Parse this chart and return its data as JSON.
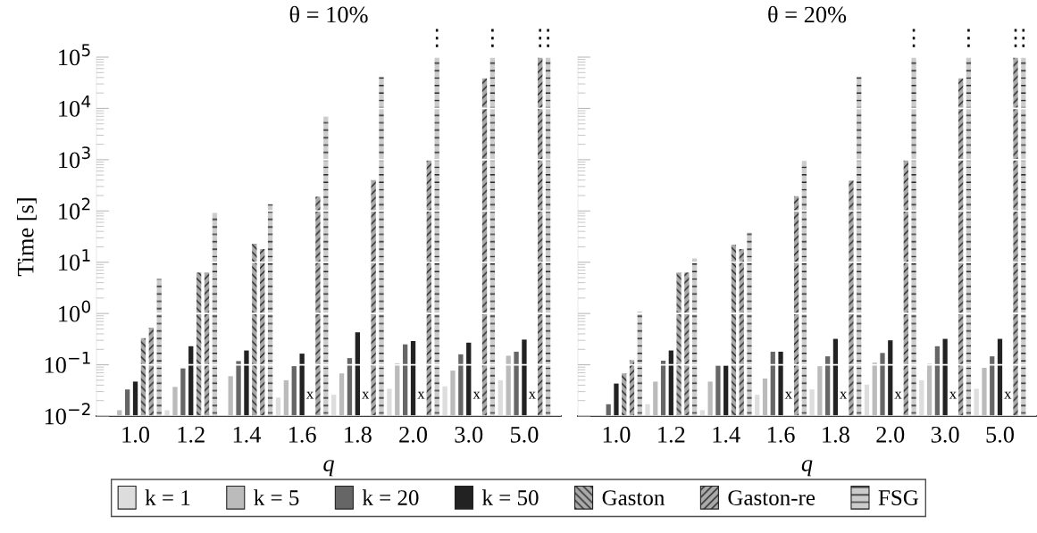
{
  "chart_data": [
    {
      "type": "bar",
      "title": "θ = 10%",
      "xlabel": "q",
      "ylabel": "Time [s]",
      "log": "y",
      "grid": "y",
      "legend": "bottom",
      "categories": [
        "1.0",
        "1.2",
        "1.4",
        "1.6",
        "1.8",
        "2.0",
        "3.0",
        "5.0"
      ],
      "ylim": [
        0.01,
        100000
      ],
      "yticks": [
        {
          "value": 0.01,
          "label": "10$^{−2}$"
        },
        {
          "value": 0.1,
          "label": "10$^{−1}$"
        },
        {
          "value": 1,
          "label": "10$^{0}$"
        },
        {
          "value": 10,
          "label": "10$^{1}$"
        },
        {
          "value": 100,
          "label": "10$^{2}$"
        },
        {
          "value": 1000,
          "label": "10$^{3}$"
        },
        {
          "value": 10000,
          "label": "10$^{4}$"
        },
        {
          "value": 100000,
          "label": "10$^{5}$"
        }
      ],
      "series": [
        {
          "name": "k = 1",
          "color": "#dddddd",
          "values": [
            null,
            0.013,
            null,
            0.023,
            0.026,
            0.034,
            0.038,
            0.05
          ]
        },
        {
          "name": "k = 5",
          "color": "#bbbbbb",
          "values": [
            0.013,
            0.037,
            0.06,
            0.05,
            0.068,
            0.107,
            0.077,
            0.15
          ]
        },
        {
          "name": "k = 20",
          "color": "#666666",
          "values": [
            0.033,
            0.085,
            0.118,
            0.094,
            0.135,
            0.25,
            0.16,
            0.18
          ]
        },
        {
          "name": "k = 50",
          "color": "#222222",
          "values": [
            0.047,
            0.23,
            0.19,
            0.165,
            0.43,
            0.29,
            0.27,
            0.31
          ]
        },
        {
          "name": "Gaston",
          "color": "#aaaaaa",
          "values": [
            0.33,
            6.3,
            23,
            null,
            null,
            null,
            null,
            null
          ],
          "value_labels": [
            null,
            null,
            null,
            "x",
            "x",
            "x",
            "x",
            "x"
          ]
        },
        {
          "name": "Gaston-re",
          "color": "#aaaaaa",
          "values": [
            0.53,
            6.3,
            18,
            190,
            400,
            980,
            38600,
            100000
          ],
          "value_labels": [
            null,
            null,
            null,
            null,
            null,
            null,
            null,
            "⋮"
          ]
        },
        {
          "name": "FSG",
          "color": "#cccccc",
          "values": [
            4.7,
            91,
            135,
            6900,
            42000,
            100000,
            100000,
            100000
          ],
          "value_labels": [
            null,
            null,
            null,
            null,
            null,
            "⋮",
            "⋮",
            "⋮"
          ]
        }
      ]
    },
    {
      "type": "bar",
      "title": "θ = 20%",
      "xlabel": "q",
      "log": "y",
      "grid": "y",
      "tick_labels": "x",
      "categories": [
        "1.0",
        "1.2",
        "1.4",
        "1.6",
        "1.8",
        "2.0",
        "3.0",
        "5.0"
      ],
      "ylim": [
        0.01,
        100000
      ],
      "yticks": [
        {
          "value": 0.01,
          "label": null
        },
        {
          "value": 0.1,
          "label": null
        },
        {
          "value": 1,
          "label": null
        },
        {
          "value": 10,
          "label": null
        },
        {
          "value": 100,
          "label": null
        },
        {
          "value": 1000,
          "label": null
        },
        {
          "value": 10000,
          "label": null
        },
        {
          "value": 100000,
          "label": null
        }
      ],
      "series": [
        {
          "color": "#dddddd",
          "values": [
            null,
            0.017,
            0.013,
            0.026,
            0.033,
            0.041,
            0.05,
            0.034
          ]
        },
        {
          "color": "#bbbbbb",
          "values": [
            null,
            0.047,
            0.047,
            0.054,
            0.094,
            0.11,
            0.105,
            0.087
          ]
        },
        {
          "color": "#666666",
          "values": [
            0.017,
            0.12,
            0.097,
            0.18,
            0.146,
            0.17,
            0.23,
            0.146
          ]
        },
        {
          "color": "#222222",
          "values": [
            0.043,
            0.19,
            0.097,
            0.18,
            0.32,
            0.3,
            0.32,
            0.32
          ]
        },
        {
          "color": "#aaaaaa",
          "values": [
            0.068,
            6.3,
            22,
            null,
            null,
            null,
            null,
            null
          ],
          "value_labels": [
            null,
            null,
            null,
            "x",
            "x",
            "x",
            "x",
            "x"
          ]
        },
        {
          "color": "#aaaaaa",
          "values": [
            0.123,
            6.3,
            18,
            195,
            390,
            980,
            38600,
            100000
          ],
          "value_labels": [
            null,
            null,
            null,
            null,
            null,
            null,
            null,
            "⋮"
          ]
        },
        {
          "color": "#cccccc",
          "values": [
            1.1,
            11.8,
            38,
            940,
            42000,
            100000,
            100000,
            100000
          ],
          "value_labels": [
            null,
            null,
            null,
            null,
            null,
            "⋮",
            "⋮",
            "⋮"
          ]
        }
      ]
    }
  ]
}
